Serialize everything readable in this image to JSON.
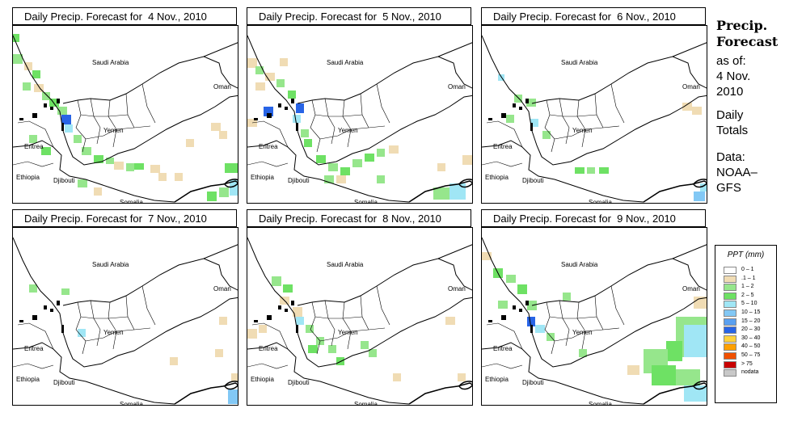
{
  "panels": [
    {
      "title": "Daily Precip. Forecast for  4 Nov., 2010",
      "labels": {
        "saudi": "Saudi Arabia",
        "oman": "Oman",
        "yemen": "Yemen",
        "eritrea": "Eritrea",
        "ethiopia": "Ethiopia",
        "djibouti": "Djibouti",
        "somalia": "Somalia"
      }
    },
    {
      "title": "Daily Precip. Forecast for  5 Nov., 2010",
      "labels": {
        "saudi": "Saudi Arabia",
        "oman": "Oman",
        "yemen": "Yemen",
        "eritrea": "Eritrea",
        "ethiopia": "Ethiopia",
        "djibouti": "Djibouti",
        "somalia": "Somalia"
      }
    },
    {
      "title": "Daily Precip. Forecast for  6 Nov., 2010",
      "labels": {
        "saudi": "Saudi Arabia",
        "oman": "Oman",
        "yemen": "Yemen",
        "eritrea": "Eritrea",
        "ethiopia": "Ethiopia",
        "djibouti": "Djibouti",
        "somalia": "Somalia"
      }
    },
    {
      "title": "Daily Precip. Forecast for  7 Nov., 2010",
      "labels": {
        "saudi": "Saudi Arabia",
        "oman": "Oman",
        "yemen": "Yemen",
        "eritrea": "Eritrea",
        "ethiopia": "Ethiopia",
        "djibouti": "Djibouti",
        "somalia": "Somalia"
      }
    },
    {
      "title": "Daily Precip. Forecast for  8 Nov., 2010",
      "labels": {
        "saudi": "Saudi Arabia",
        "oman": "Oman",
        "yemen": "Yemen",
        "eritrea": "Eritrea",
        "ethiopia": "Ethiopia",
        "djibouti": "Djibouti",
        "somalia": "Somalia"
      }
    },
    {
      "title": "Daily Precip. Forecast for  9 Nov., 2010",
      "labels": {
        "saudi": "Saudi Arabia",
        "oman": "Oman",
        "yemen": "Yemen",
        "eritrea": "Eritrea",
        "ethiopia": "Ethiopia",
        "djibouti": "Djibouti",
        "somalia": "Somalia"
      }
    }
  ],
  "sidebar": {
    "title_line1": "Precip.",
    "title_line2": "Forecast",
    "asof": "as of:",
    "date_line1": "4 Nov.",
    "date_line2": "2010",
    "totals_line1": "Daily",
    "totals_line2": "Totals",
    "data_line1": "Data:",
    "data_line2": "NOAA–",
    "data_line3": "GFS"
  },
  "legend": {
    "title": "PPT (mm)",
    "items": [
      {
        "label": "0 – 1",
        "color": "#ffffff"
      },
      {
        "label": ".1 – 1",
        "color": "#f0dcb4"
      },
      {
        "label": "1 – 2",
        "color": "#96e68c"
      },
      {
        "label": "2 – 5",
        "color": "#6ee164"
      },
      {
        "label": "5 – 10",
        "color": "#a0e6f5"
      },
      {
        "label": "10 – 15",
        "color": "#82c8f5"
      },
      {
        "label": "15 – 20",
        "color": "#5aa0f0"
      },
      {
        "label": "20 – 30",
        "color": "#2864e6"
      },
      {
        "label": "30 – 40",
        "color": "#ffd23c"
      },
      {
        "label": "40 – 50",
        "color": "#ffa000"
      },
      {
        "label": "50 – 75",
        "color": "#f05000"
      },
      {
        "label": "> 75",
        "color": "#c80000"
      },
      {
        "label": "nodata",
        "color": "#c8c8c8"
      }
    ]
  }
}
